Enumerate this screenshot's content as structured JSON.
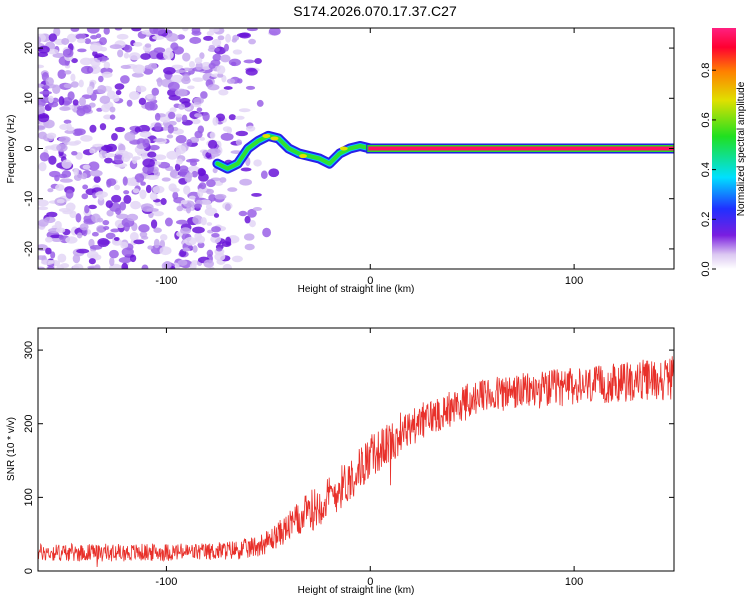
{
  "title": "S174.2026.070.17.37.C27",
  "chart_data": [
    {
      "type": "heatmap",
      "xlabel": "Height of straight line (km)",
      "ylabel": "Frequency (Hz)",
      "xlim": [
        -163,
        149
      ],
      "ylim": [
        -24,
        24
      ],
      "x_ticks": [
        -100,
        0,
        100
      ],
      "x_tick_labels": [
        "-100",
        "0",
        "100"
      ],
      "y_ticks": [
        20,
        10,
        0,
        -10,
        -20
      ],
      "y_tick_labels": [
        "20",
        "10",
        "0",
        "-10",
        "-20"
      ],
      "noise_region_x": [
        -163,
        -55
      ],
      "signal_trace": {
        "x": [
          -75,
          -70,
          -65,
          -60,
          -55,
          -50,
          -45,
          -40,
          -35,
          -30,
          -25,
          -20,
          -15,
          -10,
          -5,
          0,
          20,
          50,
          80,
          110,
          149
        ],
        "y": [
          -3,
          -4,
          -3,
          0,
          1.5,
          2.5,
          2,
          0,
          -1,
          -1.5,
          -2,
          -3,
          -1,
          0,
          0.5,
          0,
          0,
          0,
          0,
          0,
          0
        ]
      },
      "colorbar": {
        "label": "Normalized spectral amplitude",
        "range": [
          0,
          0.97
        ],
        "ticks": [
          0.0,
          0.2,
          0.4,
          0.6,
          0.8
        ],
        "tick_labels": [
          "0.0",
          "0.2",
          "0.4",
          "0.6",
          "0.8"
        ],
        "colors": [
          "#ffffff",
          "#dcc8f2",
          "#7a1ee0",
          "#2030ff",
          "#00e0ff",
          "#20e020",
          "#e0e000",
          "#ff8000",
          "#ff0030",
          "#ff2080"
        ]
      }
    },
    {
      "type": "line",
      "xlabel": "Height of straight line (km)",
      "ylabel": "SNR (10 * v/v)",
      "xlim": [
        -163,
        149
      ],
      "ylim": [
        0,
        330
      ],
      "x_ticks": [
        -100,
        0,
        100
      ],
      "x_tick_labels": [
        "-100",
        "0",
        "100"
      ],
      "y_ticks": [
        0,
        100,
        200,
        300
      ],
      "y_tick_labels": [
        "0",
        "100",
        "200",
        "300"
      ],
      "series": [
        {
          "name": "SNR",
          "color": "#e8302a",
          "trend_x": [
            -163,
            -120,
            -80,
            -60,
            -50,
            -40,
            -30,
            -20,
            -10,
            0,
            10,
            20,
            30,
            40,
            50,
            60,
            70,
            80,
            90,
            100,
            110,
            120,
            130,
            149
          ],
          "trend_y": [
            25,
            25,
            26,
            30,
            40,
            60,
            80,
            100,
            125,
            155,
            175,
            195,
            210,
            222,
            232,
            240,
            243,
            245,
            248,
            250,
            252,
            255,
            258,
            262
          ],
          "noise_amplitude": [
            12,
            12,
            12,
            14,
            16,
            20,
            28,
            30,
            30,
            30,
            28,
            26,
            25,
            25,
            25,
            25,
            25,
            25,
            26,
            26,
            26,
            27,
            28,
            30
          ]
        }
      ]
    }
  ]
}
